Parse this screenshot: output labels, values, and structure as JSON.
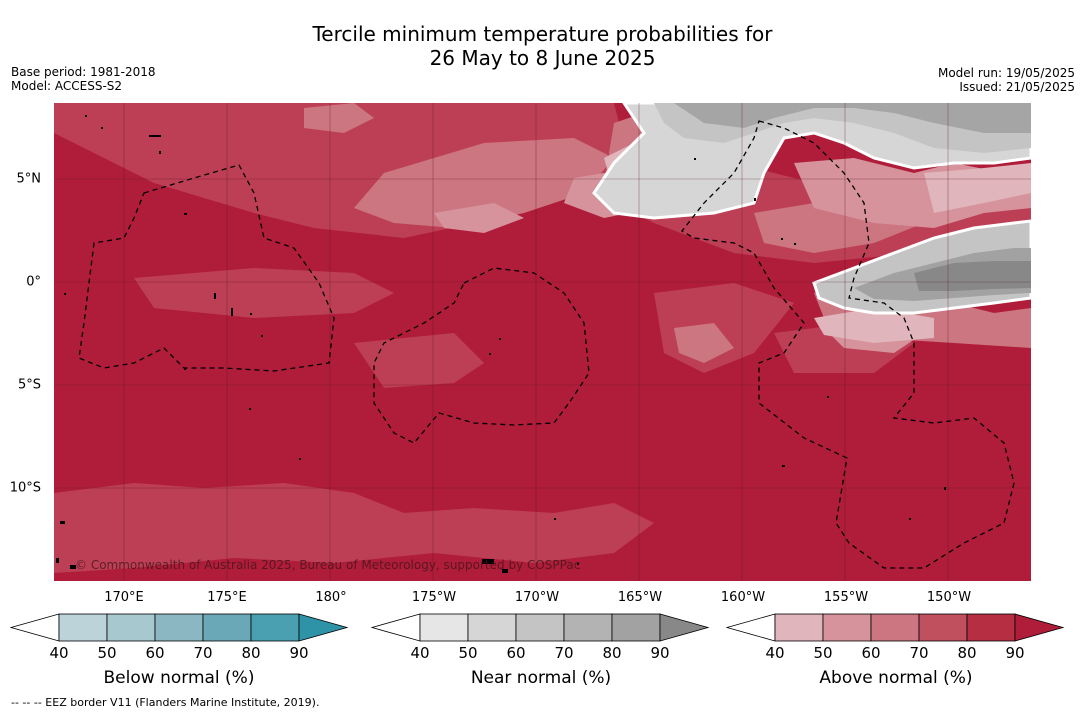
{
  "title_line1": "Tercile minimum temperature probabilities for",
  "title_line2": "26 May to 8 June 2025",
  "base_period": "Base period: 1981-2018",
  "model": "Model: ACCESS-S2",
  "model_run": "Model run: 19/05/2025",
  "issued": "Issued: 21/05/2025",
  "copyright": "© Commonwealth of Australia 2025, Bureau of Meteorology, supported by COSPPac",
  "lon_ticks": [
    "170°E",
    "175°E",
    "180°",
    "175°W",
    "170°W",
    "165°W",
    "160°W",
    "155°W",
    "150°W"
  ],
  "lat_ticks": [
    "5°N",
    "0°",
    "5°S",
    "10°S"
  ],
  "colorbars": [
    {
      "label": "Below normal (%)",
      "ticks": [
        "40",
        "50",
        "60",
        "70",
        "80",
        "90"
      ],
      "colors": [
        "#ffffff",
        "#bdd3da",
        "#a8c8cf",
        "#8ab7c2",
        "#6aa8b7",
        "#4aa0b1",
        "#2f93a8"
      ]
    },
    {
      "label": "Near normal (%)",
      "ticks": [
        "40",
        "50",
        "60",
        "70",
        "80",
        "90"
      ],
      "colors": [
        "#ffffff",
        "#e6e6e6",
        "#d6d6d6",
        "#c4c4c4",
        "#b3b3b3",
        "#a2a2a2",
        "#888888"
      ]
    },
    {
      "label": "Above normal (%)",
      "ticks": [
        "40",
        "50",
        "60",
        "70",
        "80",
        "90"
      ],
      "colors": [
        "#ffffff",
        "#e0b5bb",
        "#d6939c",
        "#cc7682",
        "#c1505f",
        "#b52e42",
        "#b01d3a"
      ]
    }
  ],
  "eez_note": "--  --  -- EEZ border V11 (Flanders Marine Institute, 2019)."
}
